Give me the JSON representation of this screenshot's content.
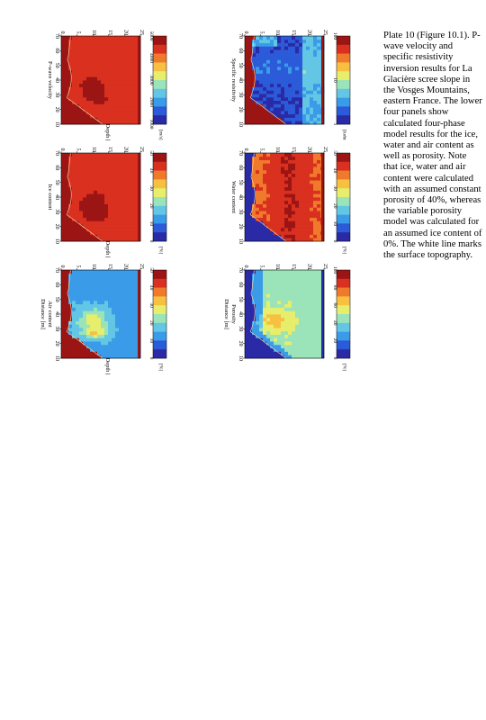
{
  "caption": "Plate 10 (Figure 10.1). P-wave velocity and specific resistivity inversion results for La Glacière scree slope in the Vosges Mountains, eastern France. The lower four panels show calculated four-phase model results for the ice, water and air content as well as porosity. Note that ice, water and air content were calculated with an assumed constant porosity of 40%, whereas the variable porosity model was calculated for an assumed ice content of 0%. The white line marks the surface topography.",
  "labels": {
    "depth": "Depth [m]",
    "distance": "Distance [m]"
  },
  "panels": [
    {
      "id": "pwave",
      "title": "P-wave velocity",
      "unit": "[m/s]",
      "show_depth": true,
      "show_distance": false,
      "colorbar_ticks": [
        "5000",
        "4000",
        "3000",
        "2000",
        "1000"
      ]
    },
    {
      "id": "resistivity",
      "title": "Specific resistivity",
      "unit": "[kohm m]",
      "show_depth": false,
      "show_distance": false,
      "colorbar_ticks": [
        "100",
        "10",
        "1"
      ]
    },
    {
      "id": "ice",
      "title": "Ice content",
      "unit": "[%]",
      "show_depth": true,
      "show_distance": false,
      "colorbar_ticks": [
        "50",
        "40",
        "30",
        "20",
        "10",
        "0"
      ]
    },
    {
      "id": "water",
      "title": "Water content",
      "unit": "[%]",
      "show_depth": false,
      "show_distance": false,
      "colorbar_ticks": [
        "50",
        "40",
        "30",
        "20",
        "10",
        "0"
      ]
    },
    {
      "id": "air",
      "title": "Air content",
      "unit": "[%]",
      "show_depth": true,
      "show_distance": true,
      "colorbar_ticks": [
        "50",
        "40",
        "30",
        "20",
        "10",
        "0"
      ]
    },
    {
      "id": "porosity",
      "title": "Porosity",
      "unit": "[%]",
      "show_depth": false,
      "show_distance": true,
      "colorbar_ticks": [
        "100",
        "80",
        "60",
        "40",
        "20",
        "0"
      ]
    }
  ],
  "chart_data": {
    "type": "heatmap",
    "x_ticks": [
      "10",
      "20",
      "30",
      "40",
      "50",
      "60",
      "70"
    ],
    "y_ticks": [
      "0",
      "5",
      "10",
      "15",
      "20",
      "25"
    ],
    "xlim": [
      10,
      70
    ],
    "ylim": [
      0,
      25
    ]
  }
}
